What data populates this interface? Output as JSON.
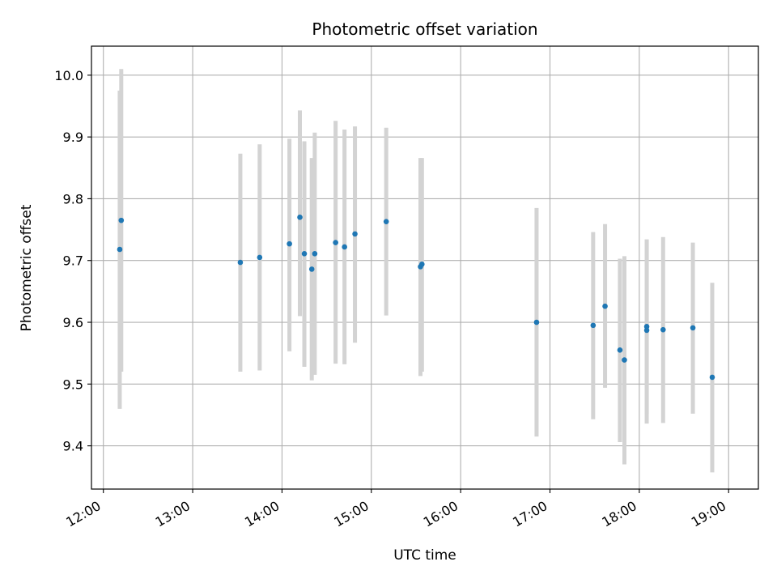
{
  "chart_data": {
    "type": "scatter",
    "title": "Photometric offset variation",
    "xlabel": "UTC time",
    "ylabel": "Photometric offset",
    "grid": true,
    "xlim": [
      "11:52",
      "19:20"
    ],
    "ylim": [
      9.33,
      10.047
    ],
    "x_ticks": [
      "12:00",
      "13:00",
      "14:00",
      "15:00",
      "16:00",
      "17:00",
      "18:00",
      "19:00"
    ],
    "y_ticks": [
      "9.4",
      "9.5",
      "9.6",
      "9.7",
      "9.8",
      "9.9",
      "10.0"
    ],
    "colors": {
      "point": "#1f77b4",
      "errorbar": "#d3d3d3",
      "grid": "#b0b0b0"
    },
    "series": [
      {
        "points": [
          {
            "x": "12:11",
            "y": 9.718,
            "err_low": 9.46,
            "err_high": 9.975
          },
          {
            "x": "12:12",
            "y": 9.765,
            "err_low": 9.52,
            "err_high": 10.01
          },
          {
            "x": "13:32",
            "y": 9.697,
            "err_low": 9.52,
            "err_high": 9.873
          },
          {
            "x": "13:45",
            "y": 9.705,
            "err_low": 9.522,
            "err_high": 9.888
          },
          {
            "x": "14:05",
            "y": 9.727,
            "err_low": 9.553,
            "err_high": 9.897
          },
          {
            "x": "14:12",
            "y": 9.77,
            "err_low": 9.61,
            "err_high": 9.943
          },
          {
            "x": "14:15",
            "y": 9.711,
            "err_low": 9.528,
            "err_high": 9.893
          },
          {
            "x": "14:20",
            "y": 9.686,
            "err_low": 9.506,
            "err_high": 9.866
          },
          {
            "x": "14:22",
            "y": 9.711,
            "err_low": 9.515,
            "err_high": 9.907
          },
          {
            "x": "14:36",
            "y": 9.729,
            "err_low": 9.533,
            "err_high": 9.926
          },
          {
            "x": "14:42",
            "y": 9.722,
            "err_low": 9.532,
            "err_high": 9.912
          },
          {
            "x": "14:49",
            "y": 9.743,
            "err_low": 9.567,
            "err_high": 9.917
          },
          {
            "x": "15:10",
            "y": 9.763,
            "err_low": 9.611,
            "err_high": 9.915
          },
          {
            "x": "15:33",
            "y": 9.69,
            "err_low": 9.513,
            "err_high": 9.866
          },
          {
            "x": "15:34",
            "y": 9.694,
            "err_low": 9.52,
            "err_high": 9.866
          },
          {
            "x": "16:51",
            "y": 9.6,
            "err_low": 9.415,
            "err_high": 9.785
          },
          {
            "x": "17:29",
            "y": 9.595,
            "err_low": 9.443,
            "err_high": 9.746
          },
          {
            "x": "17:37",
            "y": 9.626,
            "err_low": 9.494,
            "err_high": 9.759
          },
          {
            "x": "17:47",
            "y": 9.555,
            "err_low": 9.406,
            "err_high": 9.703
          },
          {
            "x": "17:50",
            "y": 9.539,
            "err_low": 9.37,
            "err_high": 9.707
          },
          {
            "x": "18:05",
            "y": 9.587,
            "err_low": 9.436,
            "err_high": 9.734
          },
          {
            "x": "18:05",
            "y": 9.593,
            "err_low": 9.452,
            "err_high": 9.734
          },
          {
            "x": "18:16",
            "y": 9.588,
            "err_low": 9.437,
            "err_high": 9.738
          },
          {
            "x": "18:36",
            "y": 9.591,
            "err_low": 9.452,
            "err_high": 9.729
          },
          {
            "x": "18:49",
            "y": 9.511,
            "err_low": 9.357,
            "err_high": 9.664
          }
        ]
      }
    ]
  }
}
